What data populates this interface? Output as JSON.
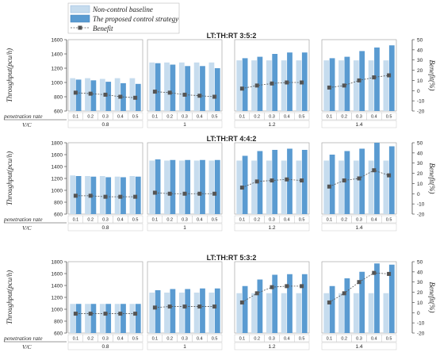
{
  "legend": {
    "items": [
      "Non-control baseline",
      "The proposed control strategy",
      "Benefit"
    ],
    "colors": [
      "#c6dcee",
      "#5a9bd1",
      "#555555"
    ]
  },
  "labels": {
    "throughput_axis": "Throughput(pcu/h)",
    "benefit_axis": "Benefit(%)",
    "penetration_rate": "penetration rate",
    "vc": "V/C"
  },
  "chart_data": [
    {
      "type": "bar",
      "title": "LT:TH:RT    3:5:2",
      "groups": [
        "0.8",
        "1",
        "1.2",
        "1.4"
      ],
      "subcategories": [
        "0.1",
        "0.2",
        "0.3",
        "0.4",
        "0.5"
      ],
      "ylabel": "Throughput(pcu/h)",
      "ylim": [
        600,
        1600
      ],
      "yticks": [
        600,
        800,
        1000,
        1200,
        1400,
        1600
      ],
      "y2label": "Benefit(%)",
      "y2lim": [
        -20,
        50
      ],
      "y2ticks": [
        -20,
        -10,
        0,
        10,
        20,
        30,
        40,
        50
      ],
      "series": [
        {
          "name": "Non-control baseline",
          "values": [
            [
              1060,
              1060,
              1050,
              1060,
              1060
            ],
            [
              1280,
              1280,
              1280,
              1280,
              1280
            ],
            [
              1310,
              1310,
              1310,
              1310,
              1310
            ],
            [
              1310,
              1310,
              1310,
              1310,
              1310
            ]
          ]
        },
        {
          "name": "The proposed control strategy",
          "values": [
            [
              1040,
              1030,
              1010,
              990,
              980
            ],
            [
              1270,
              1250,
              1230,
              1230,
              1200
            ],
            [
              1340,
              1360,
              1400,
              1420,
              1420
            ],
            [
              1340,
              1360,
              1440,
              1490,
              1520
            ]
          ]
        },
        {
          "name": "Benefit",
          "values": [
            [
              -2,
              -3,
              -4,
              -6,
              -7
            ],
            [
              -1,
              -2,
              -4,
              -5,
              -6
            ],
            [
              2,
              5,
              7,
              8,
              8
            ],
            [
              3,
              5,
              10,
              13,
              15
            ]
          ]
        }
      ]
    },
    {
      "type": "bar",
      "title": "LT:TH:RT    4:4:2",
      "groups": [
        "0.8",
        "1",
        "1.2",
        "1.4"
      ],
      "subcategories": [
        "0.1",
        "0.2",
        "0.3",
        "0.4",
        "0.5"
      ],
      "ylabel": "Throughput(pcu/h)",
      "ylim": [
        600,
        1800
      ],
      "yticks": [
        600,
        800,
        1000,
        1200,
        1400,
        1600,
        1800
      ],
      "y2label": "Benefit(%)",
      "y2lim": [
        -20,
        50
      ],
      "y2ticks": [
        -20,
        -10,
        0,
        10,
        20,
        30,
        40,
        50
      ],
      "series": [
        {
          "name": "Non-control baseline",
          "values": [
            [
              1250,
              1240,
              1240,
              1230,
              1240
            ],
            [
              1500,
              1500,
              1500,
              1500,
              1500
            ],
            [
              1500,
              1500,
              1500,
              1500,
              1500
            ],
            [
              1500,
              1500,
              1500,
              1500,
              1500
            ]
          ]
        },
        {
          "name": "The proposed control strategy",
          "values": [
            [
              1240,
              1230,
              1220,
              1220,
              1230
            ],
            [
              1520,
              1510,
              1510,
              1510,
              1510
            ],
            [
              1580,
              1660,
              1680,
              1700,
              1680
            ],
            [
              1600,
              1660,
              1700,
              1800,
              1740
            ]
          ]
        },
        {
          "name": "Benefit",
          "values": [
            [
              -2,
              -2,
              -3,
              -3,
              -3
            ],
            [
              1,
              0,
              0,
              0,
              0
            ],
            [
              6,
              12,
              13,
              14,
              13
            ],
            [
              7,
              13,
              15,
              23,
              18
            ]
          ]
        }
      ]
    },
    {
      "type": "bar",
      "title": "LT:TH:RT    5:3:2",
      "groups": [
        "0.8",
        "1",
        "1.2",
        "1.4"
      ],
      "subcategories": [
        "0.1",
        "0.2",
        "0.3",
        "0.4",
        "0.5"
      ],
      "ylabel": "Throughput(pcu/h)",
      "ylim": [
        600,
        1800
      ],
      "yticks": [
        600,
        800,
        1000,
        1200,
        1400,
        1600,
        1800
      ],
      "y2label": "Benefit(%)",
      "y2lim": [
        -20,
        50
      ],
      "y2ticks": [
        -20,
        -10,
        0,
        10,
        20,
        30,
        40,
        50
      ],
      "series": [
        {
          "name": "Non-control baseline",
          "values": [
            [
              1090,
              1090,
              1090,
              1090,
              1090
            ],
            [
              1280,
              1280,
              1280,
              1280,
              1280
            ],
            [
              1270,
              1270,
              1270,
              1270,
              1270
            ],
            [
              1270,
              1270,
              1270,
              1270,
              1270
            ]
          ]
        },
        {
          "name": "The proposed control strategy",
          "values": [
            [
              1090,
              1090,
              1090,
              1090,
              1090
            ],
            [
              1320,
              1340,
              1340,
              1350,
              1350
            ],
            [
              1390,
              1500,
              1580,
              1590,
              1590
            ],
            [
              1390,
              1520,
              1630,
              1770,
              1750
            ]
          ]
        },
        {
          "name": "Benefit",
          "values": [
            [
              -1,
              -1,
              -1,
              -1,
              -1
            ],
            [
              5,
              6,
              6,
              6,
              6
            ],
            [
              10,
              19,
              25,
              26,
              26
            ],
            [
              10,
              19,
              30,
              39,
              38
            ]
          ]
        }
      ]
    }
  ]
}
